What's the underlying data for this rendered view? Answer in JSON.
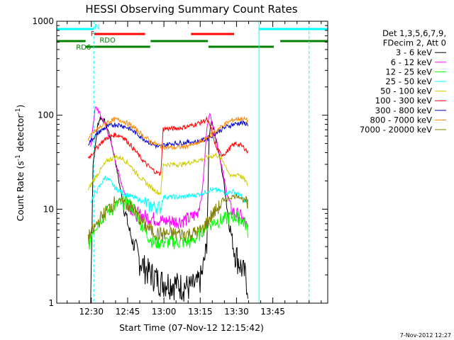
{
  "chart_data": {
    "type": "line",
    "title": "HESSI Observing Summary Count Rates",
    "xlabel": "Start Time (07-Nov-12 12:15:42)",
    "ylabel_main": "Count Rate (s",
    "ylabel_sup1": "-1",
    "ylabel_mid": " detector",
    "ylabel_sup2": "-1",
    "ylabel_end": ")",
    "x_unit": "minutes since 12:15:42",
    "xlim": [
      0,
      112
    ],
    "ylim": [
      1,
      1000
    ],
    "yscale": "log",
    "x_ticks": [
      {
        "t": 14.3,
        "label": "12:30"
      },
      {
        "t": 29.3,
        "label": "12:45"
      },
      {
        "t": 44.3,
        "label": "13:00"
      },
      {
        "t": 59.3,
        "label": "13:15"
      },
      {
        "t": 74.3,
        "label": "13:30"
      },
      {
        "t": 89.3,
        "label": "13:45"
      }
    ],
    "y_ticks": [
      {
        "v": 1,
        "label": "1"
      },
      {
        "v": 10,
        "label": "10"
      },
      {
        "v": 100,
        "label": "100"
      },
      {
        "v": 1000,
        "label": "1000"
      }
    ],
    "legend_header": [
      "Det 1,3,5,6,7,9,",
      "FDecim 2, Att 0"
    ],
    "series": [
      {
        "name": "3 - 6 keV",
        "color": "#000000",
        "points": [
          [
            14,
            1
          ],
          [
            15,
            30
          ],
          [
            17,
            80
          ],
          [
            18,
            95
          ],
          [
            20,
            85
          ],
          [
            22,
            60
          ],
          [
            24,
            35
          ],
          [
            26,
            18
          ],
          [
            28,
            10
          ],
          [
            30,
            6
          ],
          [
            32,
            4
          ],
          [
            34,
            3
          ],
          [
            36,
            2.5
          ],
          [
            38,
            2.2
          ],
          [
            40,
            2
          ],
          [
            42,
            1.8
          ],
          [
            44,
            1.7
          ],
          [
            46,
            1.7
          ],
          [
            50,
            1.6
          ],
          [
            55,
            1.5
          ],
          [
            58,
            1.6
          ],
          [
            60,
            2
          ],
          [
            62,
            4
          ],
          [
            63,
            60
          ],
          [
            64,
            90
          ],
          [
            65,
            70
          ],
          [
            67,
            40
          ],
          [
            69,
            20
          ],
          [
            71,
            8
          ],
          [
            73,
            4
          ],
          [
            76,
            2.5
          ],
          [
            78,
            2
          ],
          [
            79,
            1.5
          ]
        ]
      },
      {
        "name": "6 - 12 keV",
        "color": "#ff00ff",
        "points": [
          [
            14,
            45
          ],
          [
            15,
            80
          ],
          [
            16,
            120
          ],
          [
            17,
            115
          ],
          [
            18,
            100
          ],
          [
            20,
            80
          ],
          [
            22,
            55
          ],
          [
            24,
            35
          ],
          [
            26,
            22
          ],
          [
            28,
            15
          ],
          [
            30,
            11
          ],
          [
            33,
            9
          ],
          [
            36,
            8.5
          ],
          [
            40,
            8
          ],
          [
            44,
            7.5
          ],
          [
            46,
            7.5
          ],
          [
            50,
            7.5
          ],
          [
            55,
            8
          ],
          [
            58,
            9
          ],
          [
            60,
            14
          ],
          [
            61,
            30
          ],
          [
            62,
            70
          ],
          [
            63,
            105
          ],
          [
            64,
            90
          ],
          [
            66,
            55
          ],
          [
            68,
            30
          ],
          [
            70,
            16
          ],
          [
            72,
            10
          ],
          [
            74,
            9
          ],
          [
            76,
            8.5
          ],
          [
            78,
            7
          ],
          [
            79,
            6
          ]
        ]
      },
      {
        "name": "12 - 25 keV",
        "color": "#00ff00",
        "points": [
          [
            13,
            4
          ],
          [
            15,
            6
          ],
          [
            18,
            8
          ],
          [
            22,
            10
          ],
          [
            26,
            11.5
          ],
          [
            28,
            12
          ],
          [
            31,
            11
          ],
          [
            34,
            8
          ],
          [
            37,
            5.5
          ],
          [
            40,
            4.5
          ],
          [
            43,
            4.5
          ],
          [
            46,
            4.5
          ],
          [
            50,
            4.5
          ],
          [
            55,
            4.5
          ],
          [
            58,
            5
          ],
          [
            60,
            6
          ],
          [
            63,
            7
          ],
          [
            66,
            7.5
          ],
          [
            70,
            8
          ],
          [
            73,
            8.5
          ],
          [
            76,
            8
          ],
          [
            78,
            7
          ],
          [
            79,
            6
          ]
        ]
      },
      {
        "name": "25 - 50 keV",
        "color": "#00ffff",
        "points": [
          [
            14,
            12
          ],
          [
            16,
            15
          ],
          [
            18,
            18
          ],
          [
            20,
            22
          ],
          [
            22,
            20
          ],
          [
            24,
            17
          ],
          [
            27,
            15
          ],
          [
            30,
            14
          ],
          [
            33,
            13
          ],
          [
            36,
            12
          ],
          [
            38,
            11
          ],
          [
            42,
            10.5
          ],
          [
            43,
            10.5
          ],
          [
            44,
            13.5
          ],
          [
            47,
            13.5
          ],
          [
            52,
            13.5
          ],
          [
            56,
            14
          ],
          [
            59,
            14.5
          ],
          [
            61,
            15
          ],
          [
            63,
            16
          ],
          [
            66,
            16
          ],
          [
            70,
            15
          ],
          [
            73,
            15.5
          ],
          [
            76,
            14
          ],
          [
            78,
            12
          ],
          [
            79,
            11
          ]
        ]
      },
      {
        "name": "50 - 100 keV",
        "color": "#cccc00",
        "points": [
          [
            13,
            16
          ],
          [
            15,
            20
          ],
          [
            18,
            26
          ],
          [
            21,
            33
          ],
          [
            24,
            36
          ],
          [
            27,
            35
          ],
          [
            30,
            30
          ],
          [
            33,
            24
          ],
          [
            36,
            20
          ],
          [
            39,
            17
          ],
          [
            42,
            15
          ],
          [
            43,
            15
          ],
          [
            44,
            30
          ],
          [
            48,
            30
          ],
          [
            52,
            30
          ],
          [
            56,
            32
          ],
          [
            60,
            34
          ],
          [
            63,
            36
          ],
          [
            66,
            38
          ],
          [
            69,
            32
          ],
          [
            72,
            22
          ],
          [
            75,
            24
          ],
          [
            78,
            20
          ],
          [
            79,
            18
          ]
        ]
      },
      {
        "name": "100 - 300 keV",
        "color": "#ff0000",
        "points": [
          [
            13,
            35
          ],
          [
            15,
            40
          ],
          [
            18,
            50
          ],
          [
            21,
            58
          ],
          [
            24,
            62
          ],
          [
            27,
            60
          ],
          [
            30,
            50
          ],
          [
            33,
            40
          ],
          [
            36,
            32
          ],
          [
            39,
            27
          ],
          [
            42,
            24
          ],
          [
            43,
            24
          ],
          [
            44,
            72
          ],
          [
            48,
            72
          ],
          [
            52,
            74
          ],
          [
            56,
            78
          ],
          [
            60,
            85
          ],
          [
            62,
            90
          ],
          [
            64,
            70
          ],
          [
            66,
            44
          ],
          [
            68,
            38
          ],
          [
            70,
            40
          ],
          [
            72,
            46
          ],
          [
            74,
            50
          ],
          [
            76,
            48
          ],
          [
            78,
            44
          ],
          [
            79,
            40
          ]
        ]
      },
      {
        "name": "300 - 800 keV",
        "color": "#0000cc",
        "points": [
          [
            13,
            50
          ],
          [
            15,
            57
          ],
          [
            18,
            68
          ],
          [
            21,
            76
          ],
          [
            24,
            80
          ],
          [
            27,
            78
          ],
          [
            30,
            72
          ],
          [
            33,
            64
          ],
          [
            36,
            56
          ],
          [
            39,
            50
          ],
          [
            42,
            46
          ],
          [
            43,
            46
          ],
          [
            44,
            48
          ],
          [
            48,
            50
          ],
          [
            52,
            51
          ],
          [
            55,
            52
          ],
          [
            58,
            52
          ],
          [
            61,
            55
          ],
          [
            64,
            60
          ],
          [
            67,
            68
          ],
          [
            70,
            75
          ],
          [
            73,
            80
          ],
          [
            76,
            83
          ],
          [
            78,
            82
          ],
          [
            79,
            80
          ]
        ]
      },
      {
        "name": "800 - 7000 keV",
        "color": "#ff8800",
        "points": [
          [
            13,
            55
          ],
          [
            15,
            65
          ],
          [
            18,
            75
          ],
          [
            21,
            85
          ],
          [
            24,
            90
          ],
          [
            27,
            88
          ],
          [
            30,
            80
          ],
          [
            33,
            70
          ],
          [
            36,
            60
          ],
          [
            39,
            52
          ],
          [
            42,
            48
          ],
          [
            45,
            46
          ],
          [
            48,
            45
          ],
          [
            52,
            46
          ],
          [
            55,
            48
          ],
          [
            58,
            50
          ],
          [
            61,
            55
          ],
          [
            64,
            62
          ],
          [
            67,
            72
          ],
          [
            70,
            82
          ],
          [
            73,
            90
          ],
          [
            76,
            92
          ],
          [
            78,
            90
          ],
          [
            79,
            88
          ]
        ]
      },
      {
        "name": "7000 - 20000 keV",
        "color": "#808000",
        "points": [
          [
            13,
            5
          ],
          [
            15,
            6
          ],
          [
            18,
            8
          ],
          [
            21,
            10
          ],
          [
            24,
            12
          ],
          [
            27,
            12.5
          ],
          [
            30,
            11
          ],
          [
            33,
            9
          ],
          [
            36,
            7
          ],
          [
            39,
            6
          ],
          [
            42,
            5.5
          ],
          [
            43,
            5.5
          ],
          [
            44,
            5.5
          ],
          [
            48,
            5.5
          ],
          [
            52,
            5.5
          ],
          [
            56,
            5.5
          ],
          [
            60,
            6
          ],
          [
            63,
            8
          ],
          [
            66,
            10
          ],
          [
            69,
            12
          ],
          [
            72,
            13.5
          ],
          [
            75,
            14
          ],
          [
            78,
            12
          ],
          [
            79,
            11
          ]
        ]
      }
    ],
    "flag_bars": [
      {
        "name": "SAA",
        "label": "",
        "color": "#00ffff",
        "row": 0,
        "segments": [
          [
            0,
            15.3
          ],
          [
            83.6,
            112
          ]
        ]
      },
      {
        "name": "N",
        "label": "N",
        "color": "#00ffff",
        "row": 0,
        "segments": [
          [
            14.6,
            15.3
          ]
        ]
      },
      {
        "name": "F",
        "label": "F",
        "color": "#ff0000",
        "row": 1,
        "segments": [
          [
            15.5,
            36.5
          ],
          [
            55.5,
            73.3
          ]
        ]
      },
      {
        "name": "RD0",
        "label": "RDO",
        "color": "#008000",
        "row": 2,
        "segments": [
          [
            0,
            11.9
          ],
          [
            38.8,
            62.5
          ],
          [
            92.4,
            112
          ]
        ]
      },
      {
        "name": "RD6",
        "label": "RD6",
        "color": "#008000",
        "row": 3,
        "segments": [
          [
            11.9,
            38.6
          ],
          [
            62.7,
            89.7
          ]
        ]
      }
    ],
    "vlines": [
      {
        "t": 0,
        "color": "#00ffff",
        "style": "solid"
      },
      {
        "t": 15.3,
        "color": "#00ffff",
        "style": "dashed"
      },
      {
        "t": 83.6,
        "color": "#00ffff",
        "style": "solid"
      },
      {
        "t": 104.3,
        "color": "#00ffff",
        "style": "dashed"
      }
    ]
  },
  "footer": {
    "timestamp": "7-Nov-2012 12:27"
  }
}
